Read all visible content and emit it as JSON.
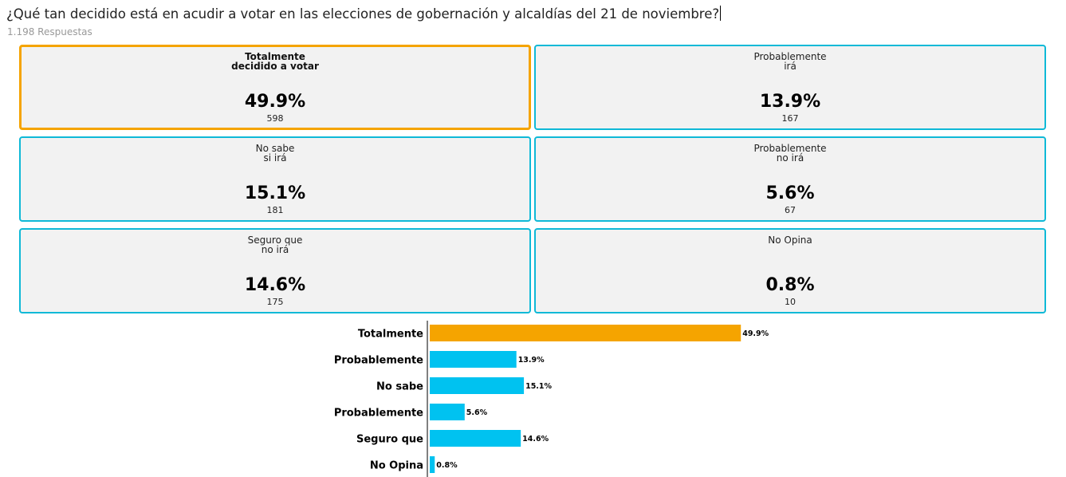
{
  "question": "¿Qué tan decidido está en acudir a votar en las elecciones de gobernación y alcaldías del 21 de noviembre?",
  "responses": "1.198 Respuestas",
  "options": [
    {
      "label_lines": [
        "Totalmente",
        "decidido a votar"
      ],
      "percent": "49.9%",
      "count": "598",
      "selected": true
    },
    {
      "label_lines": [
        "Probablemente",
        "irá"
      ],
      "percent": "13.9%",
      "count": "167",
      "selected": false
    },
    {
      "label_lines": [
        "No sabe",
        "si irá"
      ],
      "percent": "15.1%",
      "count": "181",
      "selected": false
    },
    {
      "label_lines": [
        "Probablemente",
        "no irá"
      ],
      "percent": "5.6%",
      "count": "67",
      "selected": false
    },
    {
      "label_lines": [
        "Seguro que",
        "no irá"
      ],
      "percent": "14.6%",
      "count": "175",
      "selected": false
    },
    {
      "label_lines": [
        "No Opina"
      ],
      "percent": "0.8%",
      "count": "10",
      "selected": false
    }
  ],
  "colors": {
    "highlight": "#f5a400",
    "bar": "#00c2f0",
    "card_border": "#0fb9d7",
    "card_bg": "#f2f2f2"
  },
  "chart_data": {
    "type": "bar",
    "orientation": "horizontal",
    "categories": [
      "Totalmente",
      "Probablemente",
      "No sabe",
      "Probablemente",
      "Seguro que",
      "No Opina"
    ],
    "values": [
      49.9,
      13.9,
      15.1,
      5.6,
      14.6,
      0.8
    ],
    "value_labels": [
      "49.9%",
      "13.9%",
      "15.1%",
      "5.6%",
      "14.6%",
      "0.8%"
    ],
    "highlight_index": 0,
    "xlim": [
      0,
      100
    ],
    "title": "",
    "xlabel": "",
    "ylabel": "",
    "grid": false,
    "legend": "none"
  }
}
